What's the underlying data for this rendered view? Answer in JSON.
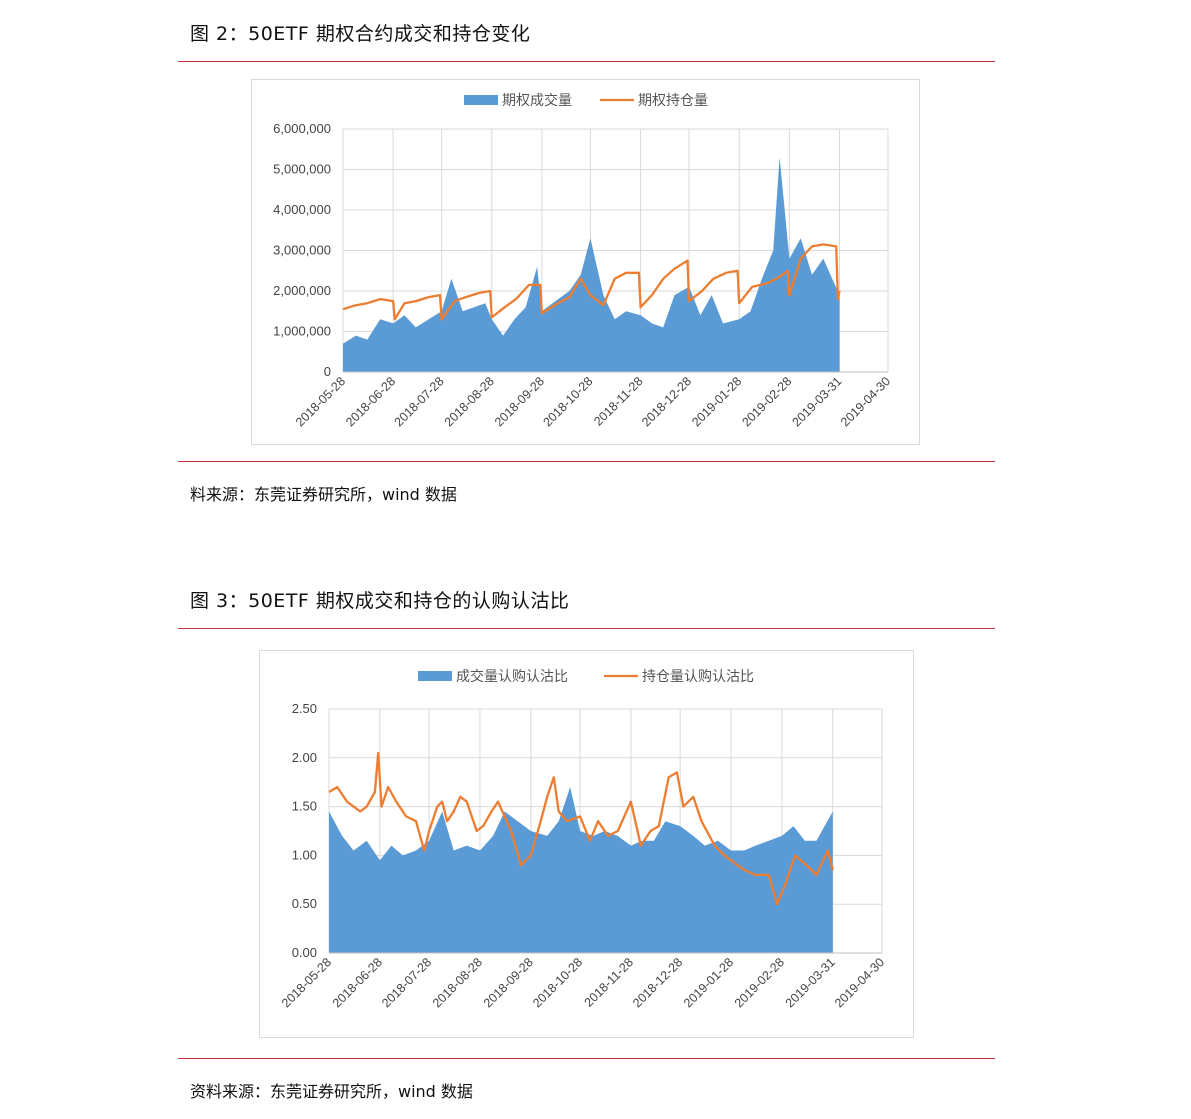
{
  "figures": [
    {
      "title": "图 2：50ETF 期权合约成交和持仓变化",
      "source": "料来源：东莞证券研究所，wind 数据"
    },
    {
      "title": "图 3：50ETF 期权成交和持仓的认购认沽比",
      "source": "资料来源：东莞证券研究所，wind 数据"
    }
  ],
  "colors": {
    "area": "#5b9bd5",
    "line": "#ed7d31",
    "grid": "#d9d9d9",
    "rule": "#c8323b"
  },
  "chart_data": [
    {
      "type": "area",
      "x_ticks": [
        "2018-05-28",
        "2018-06-28",
        "2018-07-28",
        "2018-08-28",
        "2018-09-28",
        "2018-10-28",
        "2018-11-28",
        "2018-12-28",
        "2019-01-28",
        "2019-02-28",
        "2019-03-31",
        "2019-04-30"
      ],
      "y_ticks": [
        "0",
        "1,000,000",
        "2,000,000",
        "3,000,000",
        "4,000,000",
        "5,000,000",
        "6,000,000"
      ],
      "ylim": [
        0,
        6000000
      ],
      "legend_position": "top",
      "series": [
        {
          "name": "期权成交量",
          "type": "area",
          "points": [
            [
              "2018-05-28",
              700000
            ],
            [
              "2018-06-05",
              900000
            ],
            [
              "2018-06-12",
              800000
            ],
            [
              "2018-06-20",
              1300000
            ],
            [
              "2018-06-28",
              1200000
            ],
            [
              "2018-07-05",
              1400000
            ],
            [
              "2018-07-12",
              1100000
            ],
            [
              "2018-07-20",
              1300000
            ],
            [
              "2018-07-28",
              1500000
            ],
            [
              "2018-08-03",
              2300000
            ],
            [
              "2018-08-10",
              1500000
            ],
            [
              "2018-08-17",
              1600000
            ],
            [
              "2018-08-24",
              1700000
            ],
            [
              "2018-08-28",
              1300000
            ],
            [
              "2018-09-04",
              900000
            ],
            [
              "2018-09-11",
              1300000
            ],
            [
              "2018-09-18",
              1600000
            ],
            [
              "2018-09-25",
              2600000
            ],
            [
              "2018-09-28",
              1500000
            ],
            [
              "2018-10-08",
              1800000
            ],
            [
              "2018-10-15",
              2000000
            ],
            [
              "2018-10-22",
              2400000
            ],
            [
              "2018-10-28",
              3300000
            ],
            [
              "2018-11-05",
              1900000
            ],
            [
              "2018-11-12",
              1300000
            ],
            [
              "2018-11-19",
              1500000
            ],
            [
              "2018-11-28",
              1400000
            ],
            [
              "2018-12-05",
              1200000
            ],
            [
              "2018-12-12",
              1100000
            ],
            [
              "2018-12-19",
              1900000
            ],
            [
              "2018-12-28",
              2100000
            ],
            [
              "2019-01-04",
              1400000
            ],
            [
              "2019-01-11",
              1900000
            ],
            [
              "2019-01-18",
              1200000
            ],
            [
              "2019-01-28",
              1300000
            ],
            [
              "2019-02-04",
              1500000
            ],
            [
              "2019-02-11",
              2300000
            ],
            [
              "2019-02-18",
              3000000
            ],
            [
              "2019-02-22",
              5300000
            ],
            [
              "2019-02-28",
              2800000
            ],
            [
              "2019-03-07",
              3300000
            ],
            [
              "2019-03-14",
              2400000
            ],
            [
              "2019-03-21",
              2800000
            ],
            [
              "2019-03-31",
              1900000
            ]
          ]
        },
        {
          "name": "期权持仓量",
          "type": "line",
          "points": [
            [
              "2018-05-28",
              1550000
            ],
            [
              "2018-06-05",
              1650000
            ],
            [
              "2018-06-12",
              1700000
            ],
            [
              "2018-06-20",
              1800000
            ],
            [
              "2018-06-28",
              1750000
            ],
            [
              "2018-06-29",
              1300000
            ],
            [
              "2018-07-05",
              1700000
            ],
            [
              "2018-07-12",
              1750000
            ],
            [
              "2018-07-20",
              1850000
            ],
            [
              "2018-07-27",
              1900000
            ],
            [
              "2018-07-28",
              1300000
            ],
            [
              "2018-08-05",
              1750000
            ],
            [
              "2018-08-12",
              1850000
            ],
            [
              "2018-08-20",
              1950000
            ],
            [
              "2018-08-27",
              2000000
            ],
            [
              "2018-08-28",
              1350000
            ],
            [
              "2018-09-05",
              1600000
            ],
            [
              "2018-09-12",
              1800000
            ],
            [
              "2018-09-20",
              2150000
            ],
            [
              "2018-09-27",
              2150000
            ],
            [
              "2018-09-28",
              1450000
            ],
            [
              "2018-10-08",
              1700000
            ],
            [
              "2018-10-15",
              1850000
            ],
            [
              "2018-10-22",
              2300000
            ],
            [
              "2018-10-28",
              1900000
            ],
            [
              "2018-11-05",
              1650000
            ],
            [
              "2018-11-12",
              2300000
            ],
            [
              "2018-11-19",
              2450000
            ],
            [
              "2018-11-27",
              2450000
            ],
            [
              "2018-11-28",
              1600000
            ],
            [
              "2018-12-05",
              1900000
            ],
            [
              "2018-12-12",
              2300000
            ],
            [
              "2018-12-19",
              2550000
            ],
            [
              "2018-12-27",
              2750000
            ],
            [
              "2018-12-28",
              1750000
            ],
            [
              "2019-01-05",
              2000000
            ],
            [
              "2019-01-12",
              2300000
            ],
            [
              "2019-01-20",
              2450000
            ],
            [
              "2019-01-27",
              2500000
            ],
            [
              "2019-01-28",
              1700000
            ],
            [
              "2019-02-05",
              2100000
            ],
            [
              "2019-02-15",
              2200000
            ],
            [
              "2019-02-22",
              2350000
            ],
            [
              "2019-02-27",
              2500000
            ],
            [
              "2019-02-28",
              1900000
            ],
            [
              "2019-03-07",
              2800000
            ],
            [
              "2019-03-14",
              3100000
            ],
            [
              "2019-03-21",
              3150000
            ],
            [
              "2019-03-29",
              3100000
            ],
            [
              "2019-03-30",
              1800000
            ],
            [
              "2019-03-31",
              2000000
            ]
          ]
        }
      ]
    },
    {
      "type": "area",
      "x_ticks": [
        "2018-05-28",
        "2018-06-28",
        "2018-07-28",
        "2018-08-28",
        "2018-09-28",
        "2018-10-28",
        "2018-11-28",
        "2018-12-28",
        "2019-01-28",
        "2019-02-28",
        "2019-03-31",
        "2019-04-30"
      ],
      "y_ticks": [
        "0.00",
        "0.50",
        "1.00",
        "1.50",
        "2.00",
        "2.50"
      ],
      "ylim": [
        0,
        2.5
      ],
      "legend_position": "top",
      "series": [
        {
          "name": "成交量认购认沽比",
          "type": "area",
          "points": [
            [
              "2018-05-28",
              1.45
            ],
            [
              "2018-06-05",
              1.2
            ],
            [
              "2018-06-12",
              1.05
            ],
            [
              "2018-06-20",
              1.15
            ],
            [
              "2018-06-28",
              0.95
            ],
            [
              "2018-07-05",
              1.1
            ],
            [
              "2018-07-12",
              1.0
            ],
            [
              "2018-07-20",
              1.05
            ],
            [
              "2018-07-28",
              1.15
            ],
            [
              "2018-08-05",
              1.45
            ],
            [
              "2018-08-12",
              1.05
            ],
            [
              "2018-08-20",
              1.1
            ],
            [
              "2018-08-28",
              1.05
            ],
            [
              "2018-09-05",
              1.2
            ],
            [
              "2018-09-12",
              1.45
            ],
            [
              "2018-09-20",
              1.35
            ],
            [
              "2018-09-28",
              1.25
            ],
            [
              "2018-10-08",
              1.2
            ],
            [
              "2018-10-15",
              1.35
            ],
            [
              "2018-10-22",
              1.7
            ],
            [
              "2018-10-28",
              1.25
            ],
            [
              "2018-11-05",
              1.2
            ],
            [
              "2018-11-12",
              1.25
            ],
            [
              "2018-11-20",
              1.2
            ],
            [
              "2018-11-28",
              1.1
            ],
            [
              "2018-12-05",
              1.15
            ],
            [
              "2018-12-12",
              1.15
            ],
            [
              "2018-12-19",
              1.35
            ],
            [
              "2018-12-28",
              1.3
            ],
            [
              "2019-01-05",
              1.2
            ],
            [
              "2019-01-12",
              1.1
            ],
            [
              "2019-01-20",
              1.15
            ],
            [
              "2019-01-28",
              1.05
            ],
            [
              "2019-02-05",
              1.05
            ],
            [
              "2019-02-12",
              1.1
            ],
            [
              "2019-02-20",
              1.15
            ],
            [
              "2019-02-28",
              1.2
            ],
            [
              "2019-03-07",
              1.3
            ],
            [
              "2019-03-14",
              1.15
            ],
            [
              "2019-03-21",
              1.15
            ],
            [
              "2019-03-31",
              1.45
            ]
          ]
        },
        {
          "name": "持仓量认购认沽比",
          "type": "line",
          "points": [
            [
              "2018-05-28",
              1.65
            ],
            [
              "2018-06-02",
              1.7
            ],
            [
              "2018-06-08",
              1.55
            ],
            [
              "2018-06-12",
              1.5
            ],
            [
              "2018-06-16",
              1.45
            ],
            [
              "2018-06-20",
              1.5
            ],
            [
              "2018-06-25",
              1.65
            ],
            [
              "2018-06-27",
              2.05
            ],
            [
              "2018-06-29",
              1.5
            ],
            [
              "2018-07-03",
              1.7
            ],
            [
              "2018-07-08",
              1.55
            ],
            [
              "2018-07-14",
              1.4
            ],
            [
              "2018-07-20",
              1.35
            ],
            [
              "2018-07-25",
              1.05
            ],
            [
              "2018-07-28",
              1.25
            ],
            [
              "2018-08-02",
              1.5
            ],
            [
              "2018-08-05",
              1.55
            ],
            [
              "2018-08-08",
              1.35
            ],
            [
              "2018-08-12",
              1.45
            ],
            [
              "2018-08-16",
              1.6
            ],
            [
              "2018-08-20",
              1.55
            ],
            [
              "2018-08-26",
              1.25
            ],
            [
              "2018-08-30",
              1.3
            ],
            [
              "2018-09-04",
              1.45
            ],
            [
              "2018-09-08",
              1.55
            ],
            [
              "2018-09-12",
              1.4
            ],
            [
              "2018-09-16",
              1.25
            ],
            [
              "2018-09-22",
              0.9
            ],
            [
              "2018-09-28",
              1.0
            ],
            [
              "2018-10-04",
              1.35
            ],
            [
              "2018-10-08",
              1.6
            ],
            [
              "2018-10-12",
              1.8
            ],
            [
              "2018-10-15",
              1.45
            ],
            [
              "2018-10-20",
              1.35
            ],
            [
              "2018-10-28",
              1.4
            ],
            [
              "2018-11-03",
              1.15
            ],
            [
              "2018-11-08",
              1.35
            ],
            [
              "2018-11-14",
              1.2
            ],
            [
              "2018-11-20",
              1.25
            ],
            [
              "2018-11-28",
              1.55
            ],
            [
              "2018-12-04",
              1.1
            ],
            [
              "2018-12-10",
              1.25
            ],
            [
              "2018-12-15",
              1.3
            ],
            [
              "2018-12-21",
              1.8
            ],
            [
              "2018-12-26",
              1.85
            ],
            [
              "2018-12-30",
              1.5
            ],
            [
              "2019-01-05",
              1.6
            ],
            [
              "2019-01-10",
              1.35
            ],
            [
              "2019-01-18",
              1.1
            ],
            [
              "2019-01-24",
              1.0
            ],
            [
              "2019-01-28",
              0.95
            ],
            [
              "2019-02-05",
              0.85
            ],
            [
              "2019-02-12",
              0.8
            ],
            [
              "2019-02-20",
              0.8
            ],
            [
              "2019-02-25",
              0.5
            ],
            [
              "2019-03-02",
              0.7
            ],
            [
              "2019-03-08",
              1.0
            ],
            [
              "2019-03-15",
              0.9
            ],
            [
              "2019-03-21",
              0.8
            ],
            [
              "2019-03-28",
              1.05
            ],
            [
              "2019-03-31",
              0.85
            ]
          ]
        }
      ]
    }
  ]
}
